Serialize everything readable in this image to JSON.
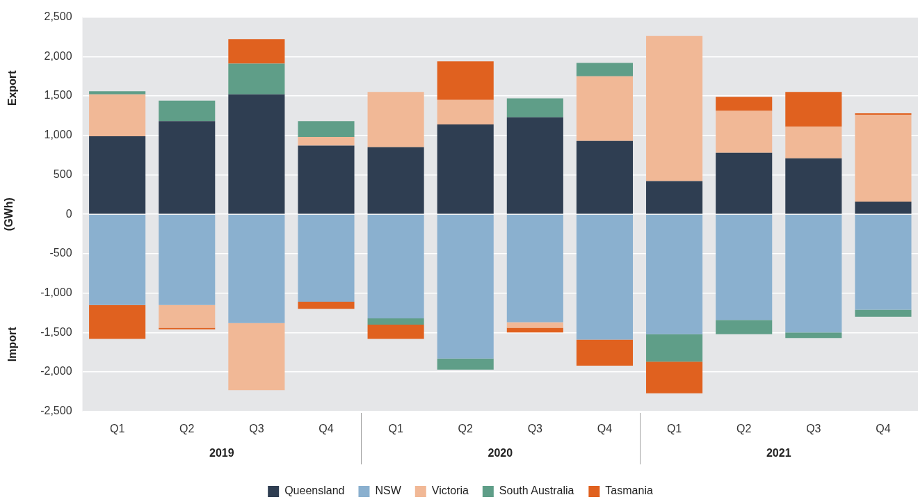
{
  "chart_data": {
    "type": "bar",
    "stacked": true,
    "ylabel": "(GWh)",
    "categories": [
      "Q1",
      "Q2",
      "Q3",
      "Q4",
      "Q1",
      "Q2",
      "Q3",
      "Q4",
      "Q1",
      "Q2",
      "Q3",
      "Q4"
    ],
    "series": [
      {
        "name": "Queensland",
        "color": "#2f3e52",
        "values": [
          990,
          1180,
          1520,
          870,
          850,
          1140,
          1230,
          930,
          420,
          780,
          710,
          160
        ]
      },
      {
        "name": "NSW",
        "color": "#8ab0cf",
        "values": [
          -1150,
          -1150,
          -1380,
          -1110,
          -1320,
          -1830,
          -1370,
          -1590,
          -1520,
          -1340,
          -1500,
          -1210
        ]
      },
      {
        "name": "Victoria",
        "color": "#f1b896",
        "values": [
          530,
          -290,
          -850,
          110,
          700,
          310,
          -70,
          820,
          1840,
          530,
          400,
          1100
        ]
      },
      {
        "name": "South Australia",
        "color": "#5f9e88",
        "values": [
          40,
          260,
          390,
          200,
          -80,
          -140,
          240,
          170,
          -350,
          -180,
          -70,
          -90
        ]
      },
      {
        "name": "Tasmania",
        "color": "#e0611f",
        "values": [
          -430,
          -20,
          310,
          -90,
          -180,
          490,
          -60,
          -330,
          -400,
          180,
          440,
          20
        ]
      }
    ],
    "ylim": [
      -2500,
      2500
    ],
    "yticks": [
      {
        "value": -2500,
        "label": "-2,500"
      },
      {
        "value": -2000,
        "label": "-2,000"
      },
      {
        "value": -1500,
        "label": "-1,500"
      },
      {
        "value": -1000,
        "label": "-1,000"
      },
      -500,
      0,
      500,
      {
        "value": 1000,
        "label": "1,000"
      },
      {
        "value": 1500,
        "label": "1,500"
      },
      {
        "value": 2000,
        "label": "2,000"
      },
      {
        "value": 2500,
        "label": "2,500"
      }
    ],
    "grid": "y",
    "legend": "bottom",
    "annotations": [
      "Export",
      "Import",
      "2019",
      "2020",
      "2021"
    ]
  }
}
